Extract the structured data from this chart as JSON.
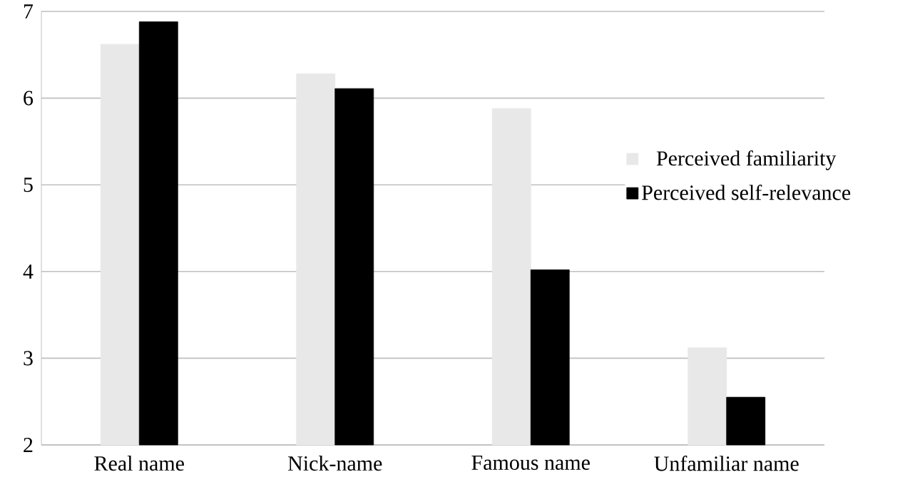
{
  "chart_data": {
    "type": "bar",
    "categories": [
      "Real name",
      "Nick-name",
      "Famous name",
      "Unfamiliar name"
    ],
    "series": [
      {
        "name": "Perceived familiarity",
        "color": "#e8e8e8",
        "values": [
          6.62,
          6.28,
          5.88,
          3.12
        ]
      },
      {
        "name": "Perceived self-relevance",
        "color": "#000000",
        "values": [
          6.88,
          6.11,
          4.02,
          2.55
        ]
      }
    ],
    "ylim": [
      2,
      7
    ],
    "yticks": [
      2,
      3,
      4,
      5,
      6,
      7
    ],
    "grid": "y",
    "legend": "right"
  }
}
